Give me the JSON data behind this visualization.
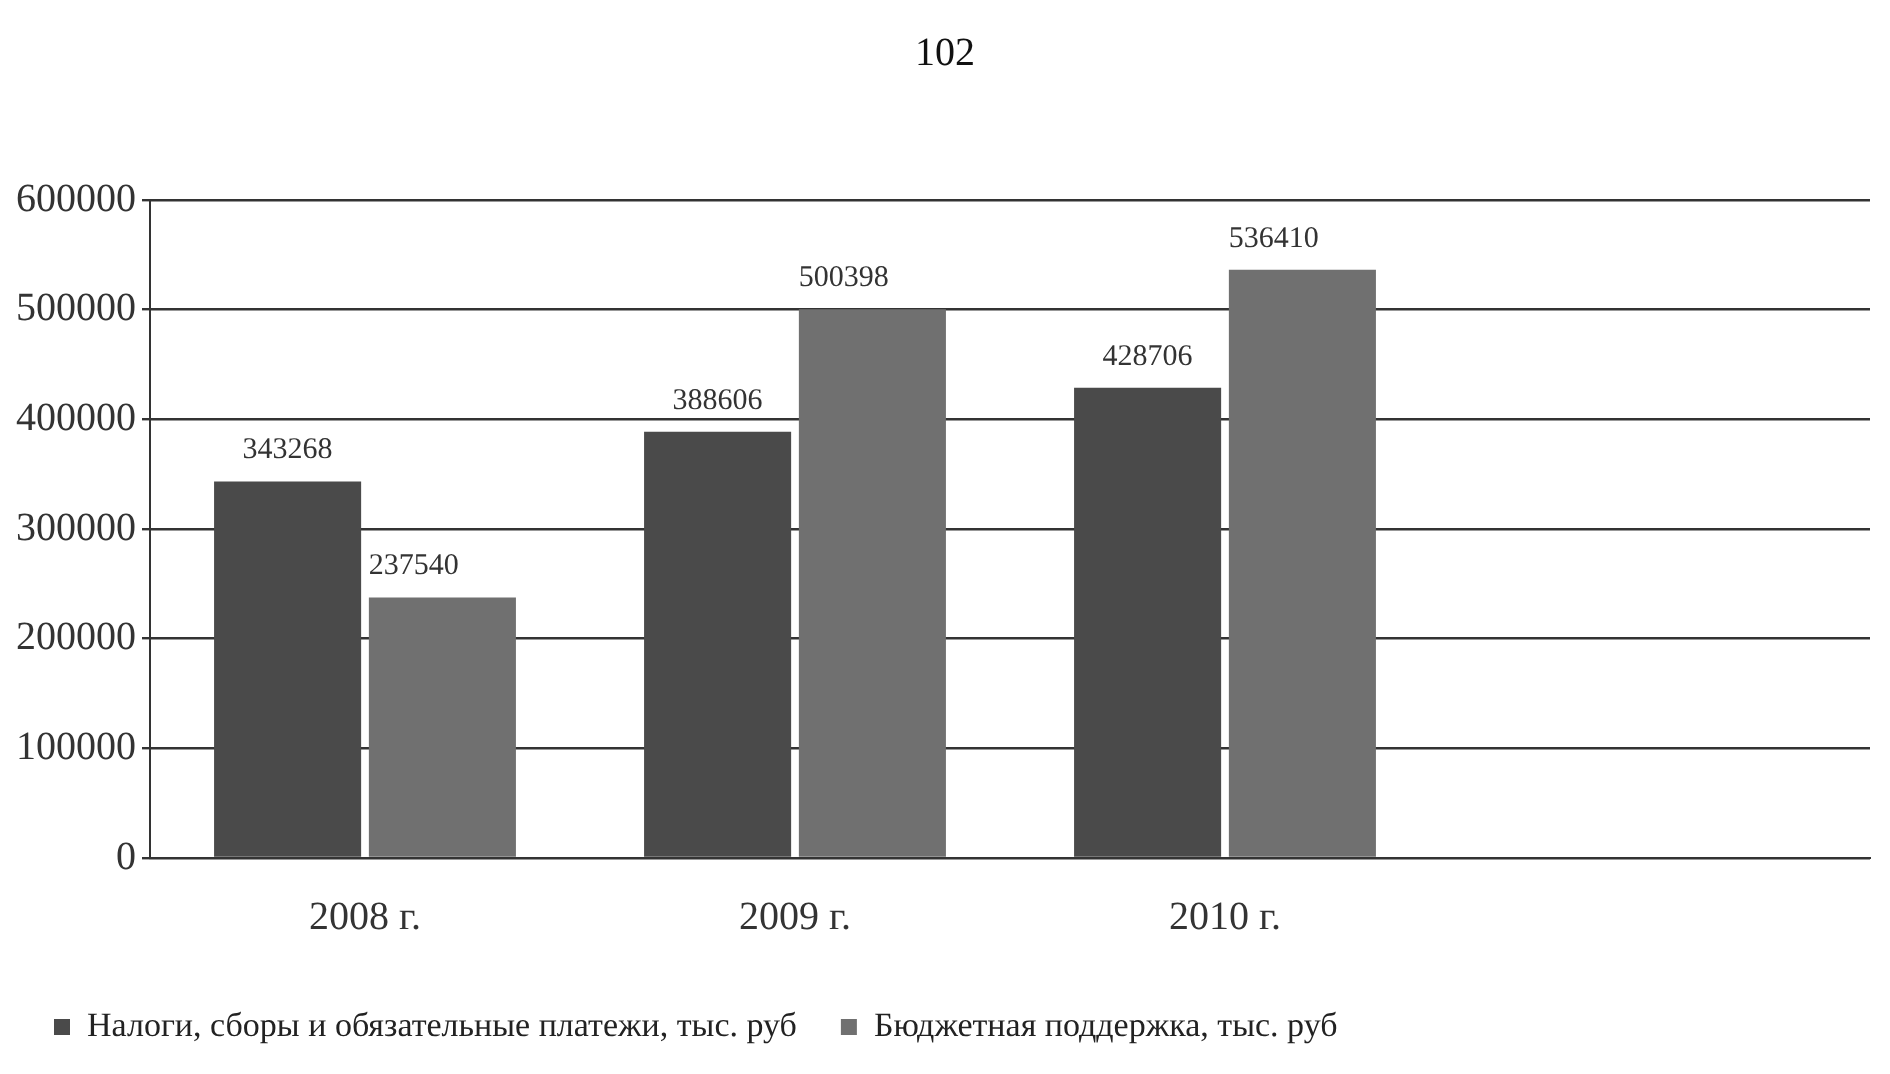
{
  "chart_data": {
    "type": "bar",
    "annotations": [
      "102"
    ],
    "categories": [
      "2008 г.",
      "2009 г.",
      "2010 г.",
      null
    ],
    "series": [
      {
        "name": "Налоги, сборы и обязательные платежи, тыс. руб",
        "color": "#4a4a4a",
        "values": [
          343268,
          388606,
          428706,
          null
        ]
      },
      {
        "name": "Бюджетная поддержка, тыс. руб",
        "color": "#707070",
        "values": [
          237540,
          500398,
          536410,
          null
        ]
      }
    ],
    "ylim": [
      0,
      600000
    ],
    "yticks": [
      0,
      100000,
      200000,
      300000,
      400000,
      500000,
      600000
    ],
    "grid": "y",
    "legend": "bottom",
    "data_labels": true
  }
}
